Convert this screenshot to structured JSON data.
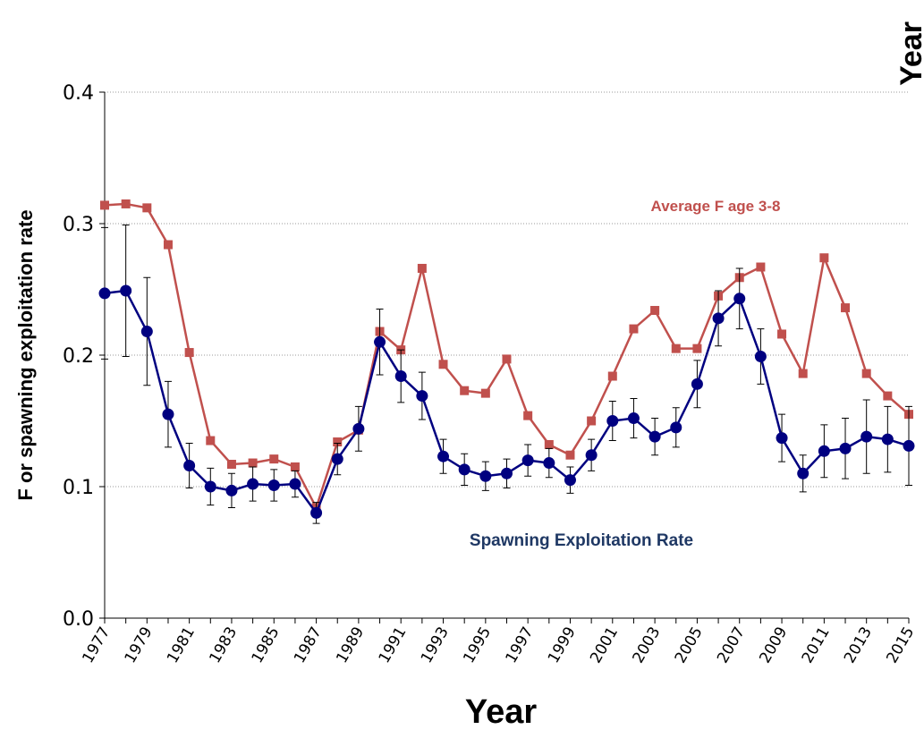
{
  "chart_data": {
    "type": "line",
    "x_label": "Year",
    "y_label": "F or spawning exploitation rate",
    "annotations": [
      "Year"
    ],
    "x": [
      1977,
      1978,
      1979,
      1980,
      1981,
      1982,
      1983,
      1984,
      1985,
      1986,
      1987,
      1988,
      1989,
      1990,
      1991,
      1992,
      1993,
      1994,
      1995,
      1996,
      1997,
      1998,
      1999,
      2000,
      2001,
      2002,
      2003,
      2004,
      2005,
      2006,
      2007,
      2008,
      2009,
      2010,
      2011,
      2012,
      2013,
      2014,
      2015
    ],
    "series": [
      {
        "name": "Average F age 3-8",
        "color": "#c0504d",
        "marker": "square",
        "values": [
          0.314,
          0.315,
          0.312,
          0.284,
          0.202,
          0.135,
          0.117,
          0.118,
          0.121,
          0.115,
          0.084,
          0.134,
          0.143,
          0.218,
          0.204,
          0.266,
          0.193,
          0.173,
          0.171,
          0.197,
          0.154,
          0.132,
          0.124,
          0.15,
          0.184,
          0.22,
          0.234,
          0.205,
          0.205,
          0.245,
          0.259,
          0.267,
          0.216,
          0.186,
          0.274,
          0.236,
          0.186,
          0.169,
          0.155
        ]
      },
      {
        "name": "Spawning Exploitation Rate",
        "color": "#000080",
        "marker": "circle",
        "values": [
          0.247,
          0.249,
          0.218,
          0.155,
          0.116,
          0.1,
          0.097,
          0.102,
          0.101,
          0.102,
          0.08,
          0.121,
          0.144,
          0.21,
          0.184,
          0.169,
          0.123,
          0.113,
          0.108,
          0.11,
          0.12,
          0.118,
          0.105,
          0.124,
          0.15,
          0.152,
          0.138,
          0.145,
          0.178,
          0.228,
          0.243,
          0.199,
          0.137,
          0.11,
          0.127,
          0.129,
          0.138,
          0.136,
          0.131
        ],
        "errors": [
          0.05,
          0.05,
          0.041,
          0.025,
          0.017,
          0.014,
          0.013,
          0.013,
          0.012,
          0.01,
          0.008,
          0.012,
          0.017,
          0.025,
          0.02,
          0.018,
          0.013,
          0.012,
          0.011,
          0.011,
          0.012,
          0.011,
          0.01,
          0.012,
          0.015,
          0.015,
          0.014,
          0.015,
          0.018,
          0.021,
          0.023,
          0.021,
          0.018,
          0.014,
          0.02,
          0.023,
          0.028,
          0.025,
          0.03
        ]
      }
    ],
    "xlim": [
      1977,
      2015
    ],
    "xticks": [
      1977,
      1979,
      1981,
      1983,
      1985,
      1987,
      1989,
      1991,
      1993,
      1995,
      1997,
      1999,
      2001,
      2003,
      2005,
      2007,
      2009,
      2011,
      2013,
      2015
    ],
    "ylim": [
      0,
      0.4
    ],
    "yticks": [
      {
        "value": 0,
        "label": "0.0"
      },
      0.1,
      0.2,
      0.3,
      0.4
    ],
    "grid": true
  }
}
